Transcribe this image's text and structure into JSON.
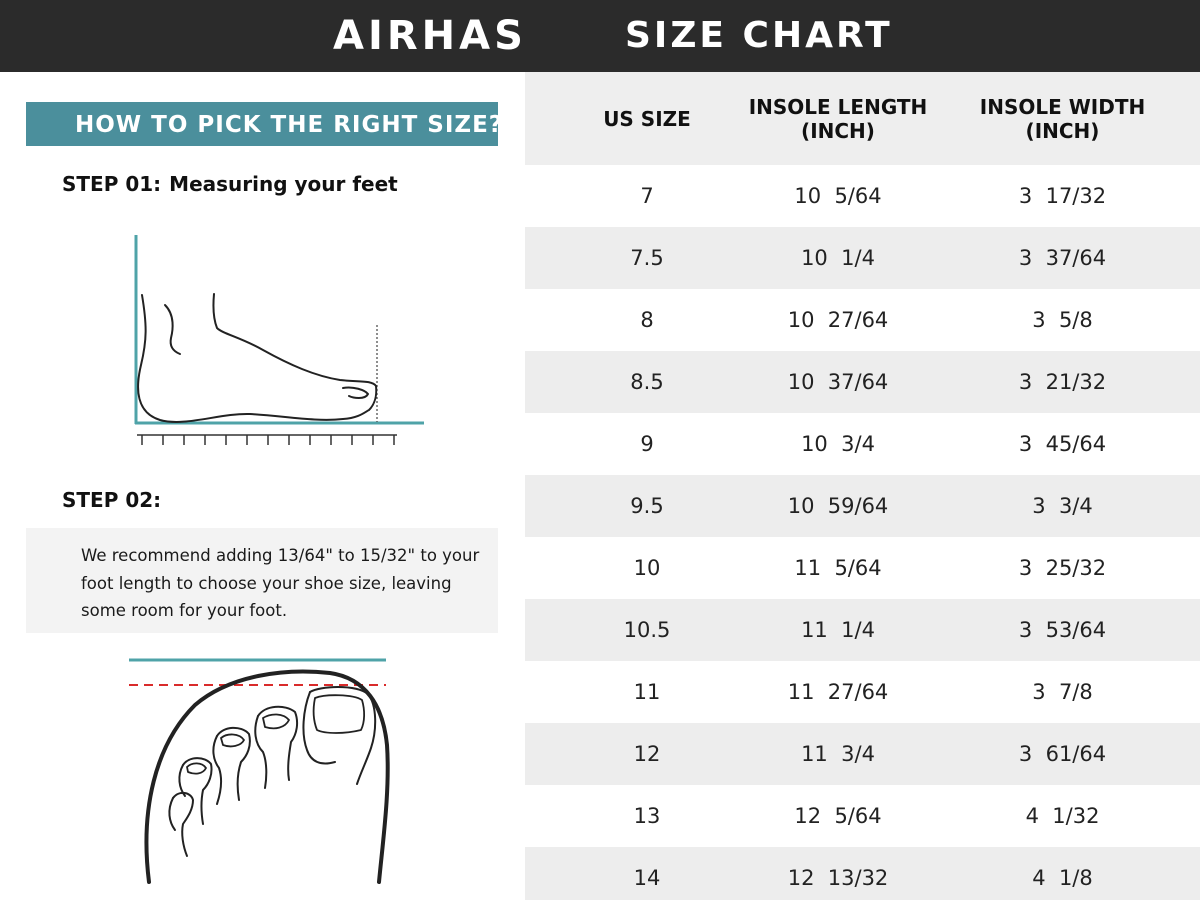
{
  "header": {
    "brand": "AIRHAS",
    "title": "SIZE CHART"
  },
  "guide": {
    "banner": "HOW TO PICK THE RIGHT SIZE?",
    "step1_label": "STEP 01:",
    "step1_title": "Measuring your feet",
    "step2_label": "STEP 02:",
    "tip": "We recommend adding 13/64\" to 15/32\" to your foot length to choose your shoe size, leaving some room for your foot."
  },
  "colors": {
    "header_bg": "#2b2b2b",
    "banner_bg": "#4b8f9c",
    "measure_line": "#4fa3a8",
    "dashed_line": "#d92b2b"
  },
  "table": {
    "headers": [
      "US SIZE",
      "INSOLE LENGTH\n(INCH)",
      "INSOLE WIDTH\n(INCH)"
    ],
    "rows": [
      [
        "7",
        "10  5/64",
        "3  17/32"
      ],
      [
        "7.5",
        "10  1/4",
        "3  37/64"
      ],
      [
        "8",
        "10  27/64",
        "3  5/8"
      ],
      [
        "8.5",
        "10  37/64",
        "3  21/32"
      ],
      [
        "9",
        "10  3/4",
        "3  45/64"
      ],
      [
        "9.5",
        "10  59/64",
        "3  3/4"
      ],
      [
        "10",
        "11  5/64",
        "3  25/32"
      ],
      [
        "10.5",
        "11  1/4",
        "3  53/64"
      ],
      [
        "11",
        "11  27/64",
        "3  7/8"
      ],
      [
        "12",
        "11  3/4",
        "3  61/64"
      ],
      [
        "13",
        "12  5/64",
        "4  1/32"
      ],
      [
        "14",
        "12  13/32",
        "4  1/8"
      ]
    ]
  }
}
